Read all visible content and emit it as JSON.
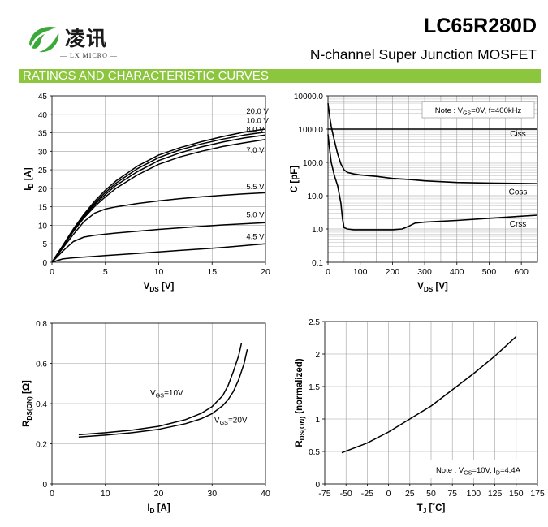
{
  "header": {
    "logo_text": "凌讯",
    "logo_subtext": "— LX MICRO —",
    "part_number": "LC65R280D",
    "description": "N-channel Super Junction MOSFET",
    "section_title": "RATINGS AND CHARACTERISTIC CURVES"
  },
  "colors": {
    "accent_band": "#8cc63e",
    "logo_green": "#3aa93a",
    "curve": "#000000"
  },
  "chart_data": [
    {
      "type": "line",
      "title": "",
      "xlabel_main": "V",
      "xlabel_sub": "DS",
      "xlabel_unit": " [V]",
      "ylabel_main": "I",
      "ylabel_sub": "D",
      "ylabel_unit": " [A]",
      "xlim": [
        0,
        20
      ],
      "ylim": [
        0,
        45
      ],
      "xticks": [
        0,
        5,
        10,
        15,
        20
      ],
      "yticks": [
        0,
        5,
        10,
        15,
        20,
        25,
        30,
        35,
        40,
        45
      ],
      "grid": true,
      "series": [
        {
          "name": "20.0 V",
          "x": [
            0,
            1,
            2,
            3,
            4,
            5,
            6,
            8,
            10,
            12,
            14,
            16,
            18,
            20
          ],
          "y": [
            0,
            4.5,
            9,
            13,
            16.5,
            19.5,
            22,
            26,
            29,
            31,
            32.6,
            34,
            35.2,
            36
          ]
        },
        {
          "name": "10.0 V",
          "x": [
            0,
            1,
            2,
            3,
            4,
            5,
            6,
            8,
            10,
            12,
            14,
            16,
            18,
            20
          ],
          "y": [
            0,
            4.4,
            8.8,
            12.7,
            16,
            18.9,
            21.4,
            25.3,
            28.3,
            30.4,
            32,
            33.3,
            34.4,
            35.2
          ]
        },
        {
          "name": "8.0 V",
          "x": [
            0,
            1,
            2,
            3,
            4,
            5,
            6,
            8,
            10,
            12,
            14,
            16,
            18,
            20
          ],
          "y": [
            0,
            4.3,
            8.6,
            12.4,
            15.6,
            18.3,
            20.8,
            24.5,
            27.5,
            29.6,
            31.2,
            32.5,
            33.6,
            34.4
          ]
        },
        {
          "name": "7.0 V",
          "x": [
            0,
            1,
            2,
            3,
            4,
            5,
            6,
            8,
            10,
            12,
            14,
            16,
            18,
            20
          ],
          "y": [
            0,
            4.2,
            8.3,
            12,
            15.1,
            17.7,
            20,
            23.6,
            26.5,
            28.5,
            30,
            31.3,
            32.3,
            33.2
          ]
        },
        {
          "name": "5.5 V",
          "x": [
            0,
            1,
            2,
            3,
            4,
            5,
            6,
            8,
            10,
            12,
            14,
            16,
            18,
            20
          ],
          "y": [
            0,
            3.8,
            7.5,
            11,
            13.3,
            14.4,
            15,
            15.9,
            16.6,
            17.2,
            17.7,
            18.1,
            18.5,
            18.8
          ]
        },
        {
          "name": "5.0 V",
          "x": [
            0,
            1,
            2,
            3,
            4,
            5,
            6,
            8,
            10,
            12,
            14,
            16,
            18,
            20
          ],
          "y": [
            0,
            3,
            5.6,
            6.8,
            7.3,
            7.6,
            7.9,
            8.4,
            8.9,
            9.3,
            9.7,
            10.1,
            10.4,
            10.7
          ]
        },
        {
          "name": "4.5 V",
          "x": [
            0,
            1,
            2,
            3,
            4,
            5,
            6,
            8,
            10,
            12,
            14,
            16,
            18,
            20
          ],
          "y": [
            0,
            0.9,
            1.2,
            1.4,
            1.6,
            1.8,
            2,
            2.4,
            2.8,
            3.2,
            3.6,
            4,
            4.5,
            5
          ]
        }
      ]
    },
    {
      "type": "line",
      "title": "",
      "note_prefix": "Note : V",
      "note_sub": "GS",
      "note_suffix": "=0V, f=400kHz",
      "xlabel_main": "V",
      "xlabel_sub": "DS",
      "xlabel_unit": " [V]",
      "ylabel_text": "C [pF]",
      "xlim": [
        0,
        650
      ],
      "ylim": [
        0.1,
        10000
      ],
      "yscale": "log",
      "xticks": [
        0,
        100,
        200,
        300,
        400,
        500,
        600
      ],
      "yticks": [
        0.1,
        1,
        10,
        100,
        1000,
        10000
      ],
      "ytick_labels": [
        "0.1",
        "1.0",
        "10.0",
        "100.0",
        "1000.0",
        "10000.0"
      ],
      "grid": true,
      "series": [
        {
          "name": "Ciss",
          "x": [
            0,
            5,
            10,
            20,
            50,
            100,
            200,
            300,
            400,
            500,
            650
          ],
          "y": [
            1000,
            1000,
            1000,
            1000,
            1000,
            1000,
            1000,
            1000,
            1000,
            1000,
            1000
          ]
        },
        {
          "name": "Coss",
          "x": [
            0,
            5,
            10,
            20,
            30,
            40,
            50,
            60,
            80,
            100,
            150,
            200,
            250,
            300,
            400,
            500,
            650
          ],
          "y": [
            6000,
            2500,
            1200,
            450,
            180,
            90,
            60,
            50,
            45,
            42,
            38,
            33,
            31,
            28,
            25,
            24,
            23
          ]
        },
        {
          "name": "Crss",
          "x": [
            0,
            5,
            10,
            20,
            30,
            40,
            45,
            50,
            60,
            80,
            100,
            150,
            200,
            230,
            250,
            270,
            300,
            400,
            500,
            650
          ],
          "y": [
            700,
            250,
            100,
            40,
            20,
            6,
            2,
            1.1,
            1,
            0.95,
            0.95,
            0.95,
            0.95,
            1,
            1.2,
            1.5,
            1.6,
            1.8,
            2.1,
            2.6
          ]
        }
      ]
    },
    {
      "type": "line",
      "title": "",
      "xlabel_main": "I",
      "xlabel_sub": "D",
      "xlabel_unit": " [A]",
      "ylabel_main": "R",
      "ylabel_sub": "DS(ON)",
      "ylabel_unit": " [Ω]",
      "xlim": [
        0,
        40
      ],
      "ylim": [
        0,
        0.8
      ],
      "xticks": [
        0,
        10,
        20,
        30,
        40
      ],
      "yticks": [
        0,
        0.2,
        0.4,
        0.6,
        0.8
      ],
      "grid": true,
      "series": [
        {
          "name": "VGS=10V",
          "label_main": "V",
          "label_sub": "GS",
          "label_suffix": "=10V",
          "x": [
            5,
            10,
            15,
            20,
            25,
            28,
            30,
            32,
            33,
            34,
            35,
            35.5
          ],
          "y": [
            0.245,
            0.255,
            0.268,
            0.287,
            0.32,
            0.352,
            0.385,
            0.44,
            0.49,
            0.56,
            0.64,
            0.7
          ]
        },
        {
          "name": "VGS=20V",
          "label_main": "V",
          "label_sub": "GS",
          "label_suffix": "=20V",
          "x": [
            5,
            10,
            15,
            20,
            25,
            28,
            30,
            32,
            33,
            34,
            35,
            36,
            36.6
          ],
          "y": [
            0.233,
            0.243,
            0.255,
            0.272,
            0.3,
            0.325,
            0.35,
            0.39,
            0.42,
            0.46,
            0.52,
            0.6,
            0.67
          ]
        }
      ]
    },
    {
      "type": "line",
      "title": "",
      "note_prefix": "Note : V",
      "note_sub": "GS",
      "note_mid": "=10V, I",
      "note_sub2": "D",
      "note_suffix": "=4.4A",
      "xlabel_main": "T",
      "xlabel_sub": "J",
      "xlabel_unit": " [˚C]",
      "ylabel_main": "R",
      "ylabel_sub": "DS(ON)",
      "ylabel_unit": " (normalized)",
      "xlim": [
        -75,
        175
      ],
      "ylim": [
        0,
        2.5
      ],
      "xticks": [
        -75,
        -50,
        -25,
        0,
        25,
        50,
        75,
        100,
        125,
        150,
        175
      ],
      "yticks": [
        0,
        0.5,
        1,
        1.5,
        2,
        2.5
      ],
      "ytick_labels": [
        "0",
        "0.5",
        "1",
        "1.5",
        "2",
        "2.5"
      ],
      "grid": true,
      "series": [
        {
          "name": "RDS(ON)",
          "x": [
            -55,
            -25,
            0,
            25,
            50,
            75,
            100,
            125,
            150
          ],
          "y": [
            0.48,
            0.63,
            0.8,
            1.0,
            1.2,
            1.45,
            1.7,
            1.97,
            2.27
          ]
        }
      ]
    }
  ]
}
